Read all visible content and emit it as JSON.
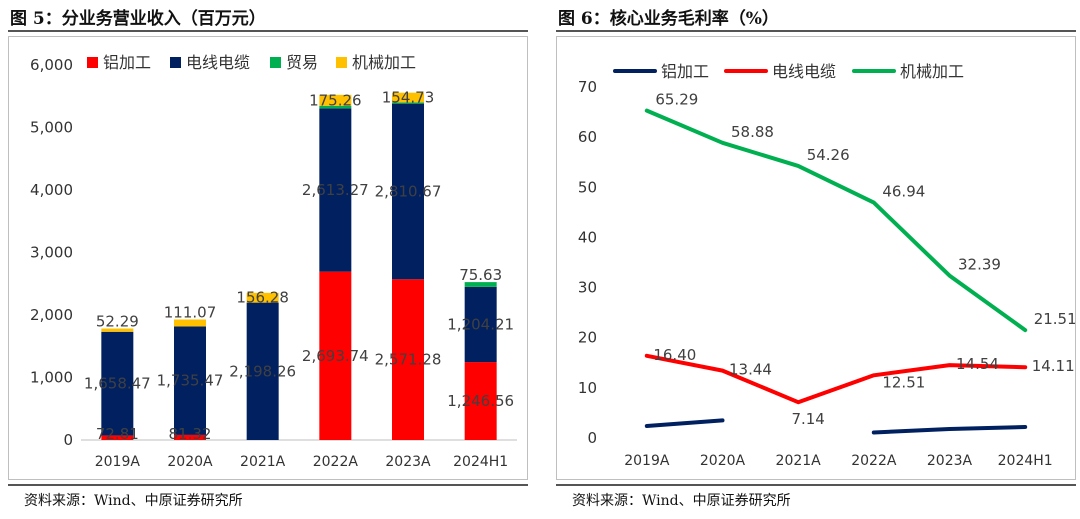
{
  "figures": {
    "left": {
      "title": "图 5：分业务营业收入（百万元）",
      "source": "资料来源：Wind、中原证券研究所"
    },
    "right": {
      "title": "图 6：核心业务毛利率（%）",
      "source": "资料来源：Wind、中原证券研究所"
    }
  },
  "chart_data": [
    {
      "type": "bar",
      "stacked": true,
      "title": "分业务营业收入（百万元）",
      "categories": [
        "2019A",
        "2020A",
        "2021A",
        "2022A",
        "2023A",
        "2024H1"
      ],
      "ylim": [
        0,
        6000
      ],
      "yticks": [
        0,
        1000,
        2000,
        3000,
        4000,
        5000,
        6000
      ],
      "ytick_labels": [
        "0",
        "1,000",
        "2,000",
        "3,000",
        "4,000",
        "5,000",
        "6,000"
      ],
      "legend_position": "top",
      "series": [
        {
          "name": "铝加工",
          "color": "#ff0000",
          "values": [
            72.81,
            81.32,
            null,
            2693.74,
            2571.28,
            1246.56
          ],
          "labels": [
            "72.81",
            "81.32",
            "",
            "2,693.74",
            "2,571.28",
            "1,246.56"
          ]
        },
        {
          "name": "电线电缆",
          "color": "#002060",
          "values": [
            1658.47,
            1735.47,
            2198.26,
            2613.27,
            2810.67,
            1204.21
          ],
          "labels": [
            "1,658.47",
            "1,735.47",
            "2,198.26",
            "2,613.27",
            "2,810.67",
            "1,204.21"
          ]
        },
        {
          "name": "贸易",
          "color": "#00b050",
          "values": [
            null,
            null,
            null,
            40,
            20,
            75.63
          ],
          "labels": [
            "",
            "",
            "",
            "",
            "",
            "75.63"
          ]
        },
        {
          "name": "机械加工",
          "color": "#ffc000",
          "values": [
            52.29,
            111.07,
            156.28,
            175.26,
            154.73,
            null
          ],
          "labels": [
            "52.29",
            "111.07",
            "156.28",
            "175.26",
            "154.73",
            ""
          ]
        }
      ]
    },
    {
      "type": "line",
      "title": "核心业务毛利率（%）",
      "categories": [
        "2019A",
        "2020A",
        "2021A",
        "2022A",
        "2023A",
        "2024H1"
      ],
      "ylim": [
        0,
        70
      ],
      "yticks": [
        0,
        10,
        20,
        30,
        40,
        50,
        60,
        70
      ],
      "ytick_labels": [
        "0",
        "10",
        "20",
        "30",
        "40",
        "50",
        "60",
        "70"
      ],
      "legend_position": "top",
      "series": [
        {
          "name": "铝加工",
          "color": "#002060",
          "values": [
            2.4,
            3.5,
            null,
            1.1,
            1.8,
            2.2
          ],
          "labels": []
        },
        {
          "name": "电线电缆",
          "color": "#ff0000",
          "values": [
            16.4,
            13.44,
            7.14,
            12.51,
            14.54,
            14.11
          ],
          "labels": [
            "16.40",
            "13.44",
            "7.14",
            "12.51",
            "14.54",
            "14.11"
          ]
        },
        {
          "name": "机械加工",
          "color": "#00b050",
          "values": [
            65.29,
            58.88,
            54.26,
            46.94,
            32.39,
            21.51
          ],
          "labels": [
            "65.29",
            "58.88",
            "54.26",
            "46.94",
            "32.39",
            "21.51"
          ]
        }
      ]
    }
  ]
}
